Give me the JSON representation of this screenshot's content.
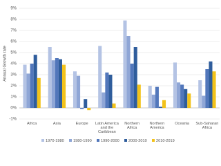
{
  "chart_data": {
    "type": "bar",
    "y_label": "Annual Growth rate",
    "categories": [
      "Africa",
      "Asia",
      "Europe",
      "Latin America and the Caribbean",
      "Northern Africa",
      "Northern America",
      "Oceania",
      "Sub-Saharan Africa"
    ],
    "series": [
      {
        "name": "1970-1980",
        "color": "#b4c3e4",
        "values": [
          3.9,
          5.5,
          3.3,
          5.6,
          7.9,
          2.0,
          4.1,
          2.5
        ]
      },
      {
        "name": "1980-1990",
        "color": "#8fa6d6",
        "values": [
          3.1,
          4.3,
          2.9,
          1.4,
          6.5,
          1.2,
          2.3,
          1.1
        ]
      },
      {
        "name": "1990-2000",
        "color": "#5277bb",
        "values": [
          4.0,
          4.5,
          -0.1,
          3.2,
          4.0,
          1.9,
          2.1,
          3.5
        ]
      },
      {
        "name": "2000-2010",
        "color": "#2f5d9c",
        "values": [
          4.8,
          4.4,
          0.8,
          3.0,
          5.5,
          0.1,
          1.7,
          4.2
        ]
      },
      {
        "name": "2010-2019",
        "color": "#f2c21b",
        "values": [
          2.7,
          3.9,
          -0.2,
          0.4,
          2.1,
          0.7,
          1.3,
          3.3
        ]
      }
    ],
    "ylim": [
      -1,
      9
    ],
    "yticks": [
      {
        "value": -1,
        "label": "-1%"
      },
      {
        "value": 0,
        "label": "0%"
      },
      {
        "value": 1,
        "label": "1%"
      },
      {
        "value": 2,
        "label": "2%"
      },
      {
        "value": 3,
        "label": "3%"
      },
      {
        "value": 4,
        "label": "4%"
      },
      {
        "value": 5,
        "label": "5%"
      },
      {
        "value": 6,
        "label": "6%"
      },
      {
        "value": 7,
        "label": "7%"
      },
      {
        "value": 8,
        "label": "8%"
      },
      {
        "value": 9,
        "label": "9%"
      }
    ],
    "grid": true,
    "legend": "bottom"
  }
}
